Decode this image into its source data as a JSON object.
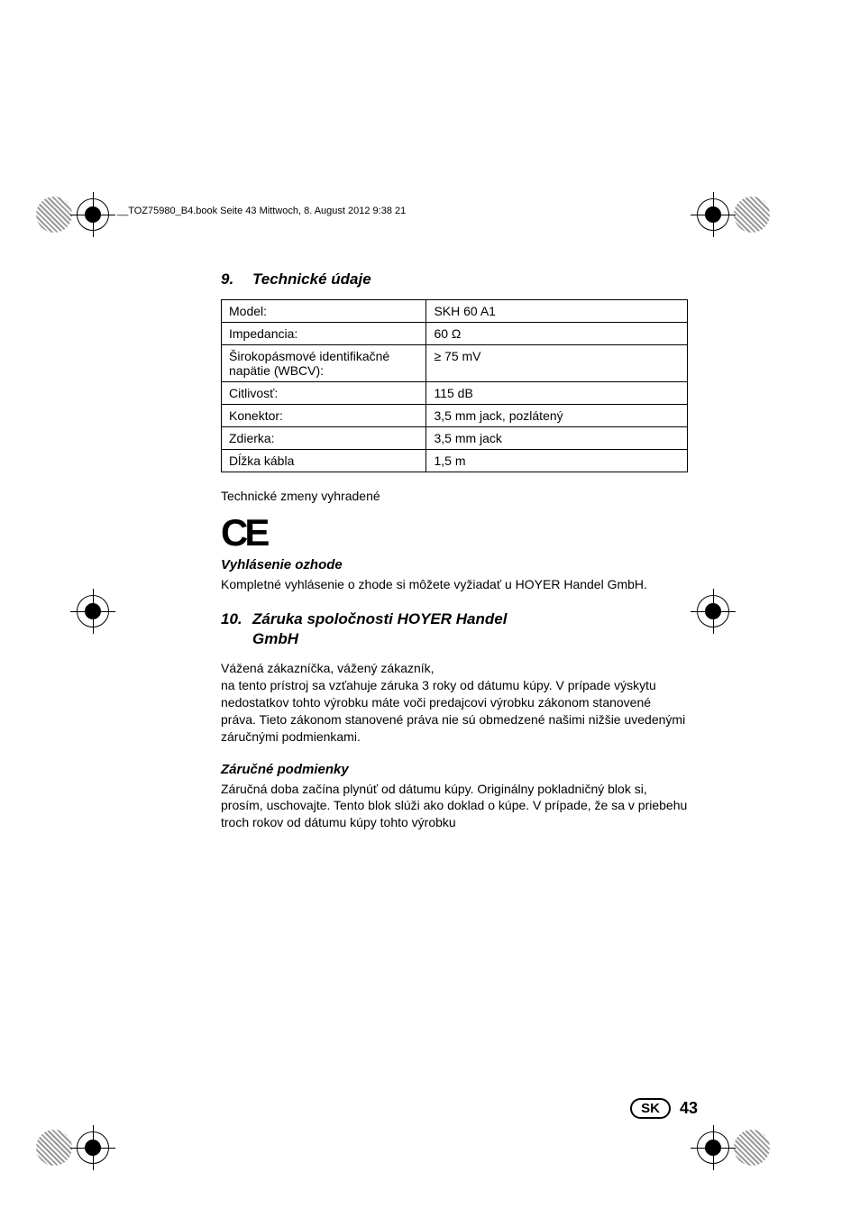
{
  "header": {
    "text": "__TOZ75980_B4.book  Seite 43  Mittwoch, 8. August 2012  9:38 21"
  },
  "section9": {
    "number": "9.",
    "title": "Technické údaje",
    "table": {
      "rows": [
        {
          "label": "Model:",
          "value": "SKH 60 A1"
        },
        {
          "label": "Impedancia:",
          "value": "60 Ω"
        },
        {
          "label": "Širokopásmové identifikačné napätie (WBCV):",
          "value": "≥ 75 mV"
        },
        {
          "label": "Citlivosť:",
          "value": "115 dB"
        },
        {
          "label": "Konektor:",
          "value": "3,5 mm jack, pozlátený"
        },
        {
          "label": "Zdierka:",
          "value": "3,5 mm jack"
        },
        {
          "label": "Dĺžka kábla",
          "value": "1,5 m"
        }
      ]
    },
    "notice": "Technické zmeny vyhradené",
    "ce_symbol": "CE",
    "declaration": {
      "heading": "Vyhlásenie ozhode",
      "text": "Kompletné vyhlásenie o zhode si môžete vyžiadať u HOYER Handel GmbH."
    }
  },
  "section10": {
    "number": "10.",
    "title_line1": "Záruka spoločnosti HOYER Handel",
    "title_line2": "GmbH",
    "intro": "Vážená zákazníčka, vážený zákazník,",
    "body1": "na tento prístroj sa vzťahuje záruka 3 roky od dátumu kúpy. V prípade výskytu nedostatkov tohto výrobku máte voči predajcovi výrobku zákonom stanovené práva. Tieto zákonom stanovené práva nie sú obmedzené našimi nižšie uvedenými záručnými podmienkami.",
    "conditions": {
      "heading": "Záručné podmienky",
      "text": "Záručná doba začína plynúť od dátumu kúpy. Originálny pokladničný blok si, prosím, uschovajte. Tento blok slúži ako doklad o kúpe. V prípade, že sa v priebehu troch rokov od dátumu kúpy tohto výrobku"
    }
  },
  "footer": {
    "lang": "SK",
    "page": "43"
  },
  "styling": {
    "heading_color": "#000000",
    "text_color": "#000000",
    "border_color": "#000000",
    "background_color": "#ffffff",
    "heading_fontsize": 17,
    "body_fontsize": 14,
    "table_fontsize": 14
  }
}
